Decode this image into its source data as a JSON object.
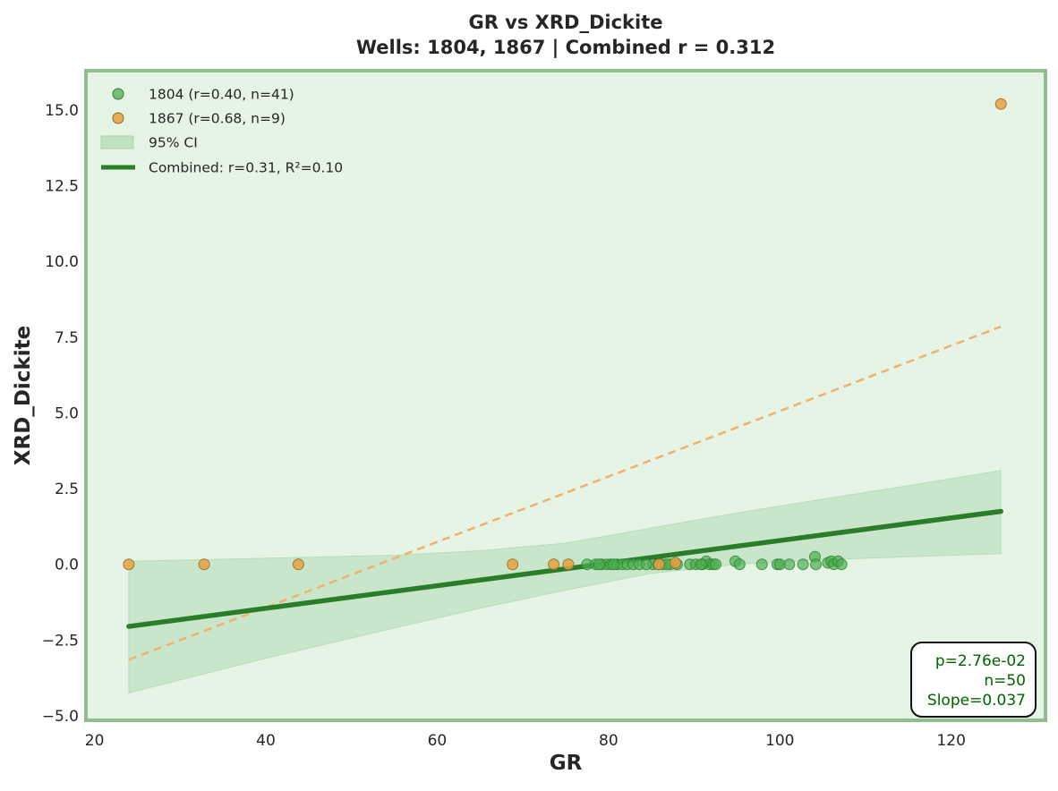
{
  "chart_data": {
    "type": "scatter",
    "title": "GR vs XRD_Dickite",
    "subtitle": "Wells: 1804, 1867 | Combined r = 0.312",
    "xlabel": "GR",
    "ylabel": "XRD_Dickite",
    "xlim": [
      19,
      131
    ],
    "ylim": [
      -5.15,
      16.3
    ],
    "xticks": [
      20,
      40,
      60,
      80,
      100,
      120
    ],
    "yticks": [
      -5.0,
      -2.5,
      0.0,
      2.5,
      5.0,
      7.5,
      10.0,
      12.5,
      15.0
    ],
    "xtick_labels": [
      "20",
      "40",
      "60",
      "80",
      "100",
      "120"
    ],
    "ytick_labels": [
      "−5.0",
      "−2.5",
      "0.0",
      "2.5",
      "5.0",
      "7.5",
      "10.0",
      "12.5",
      "15.0"
    ],
    "grid": false,
    "legend_position": "top-left",
    "colors": {
      "background": "#e6f4e6",
      "frame": "#8fbf8f",
      "well_1804": "#4caf50",
      "well_1867": "#e8a040",
      "fit_1867": "#f0b070",
      "combined_fit": "#2a7d2a",
      "ci_fill": "#a8d5a8",
      "stats_text": "#006400"
    },
    "series": [
      {
        "name": "1804 (r=0.40, n=41)",
        "kind": "scatter",
        "x": [
          77.5,
          78.5,
          79.2,
          79.8,
          80.3,
          81.0,
          81.6,
          82.2,
          82.9,
          83.6,
          85.2,
          85.8,
          86.3,
          87.2,
          88.0,
          89.5,
          90.2,
          91.0,
          91.4,
          91.8,
          92.2,
          94.8,
          95.3,
          97.9,
          99.7,
          100.0,
          101.1,
          102.7,
          104.1,
          104.2,
          105.6,
          106.0,
          106.3,
          106.8,
          107.2,
          92.5,
          90.8,
          86.8,
          84.4,
          80.6,
          78.9
        ],
        "y": [
          0.0,
          0.0,
          0.0,
          0.0,
          0.0,
          0.0,
          0.0,
          0.0,
          0.0,
          0.0,
          0.0,
          0.0,
          0.0,
          0.0,
          0.0,
          0.0,
          0.0,
          0.0,
          0.1,
          0.0,
          0.0,
          0.1,
          0.0,
          0.0,
          0.0,
          0.0,
          0.0,
          0.0,
          0.25,
          0.0,
          0.05,
          0.1,
          0.0,
          0.1,
          0.0,
          0.0,
          0.0,
          0.0,
          0.0,
          0.0,
          0.0
        ]
      },
      {
        "name": "1867 (r=0.68, n=9)",
        "kind": "scatter",
        "x": [
          24.0,
          32.8,
          43.8,
          68.8,
          73.6,
          75.3,
          85.9,
          87.8,
          125.8
        ],
        "y": [
          0.0,
          0.0,
          0.0,
          0.0,
          0.0,
          0.0,
          0.0,
          0.05,
          15.2
        ]
      }
    ],
    "fits": [
      {
        "name": "1867 fit",
        "style": "dashed",
        "x": [
          24.0,
          125.8
        ],
        "y": [
          -3.15,
          7.85
        ]
      },
      {
        "name": "Combined: r=0.31, R²=0.10",
        "style": "solid",
        "x": [
          24.0,
          125.8
        ],
        "y": [
          -2.05,
          1.75
        ]
      }
    ],
    "ci_band": {
      "name": "95% CI",
      "x": [
        24.0,
        40.0,
        55.0,
        65.0,
        75.0,
        85.0,
        95.0,
        105.0,
        115.0,
        125.8
      ],
      "upper": [
        0.1,
        0.2,
        0.3,
        0.45,
        0.7,
        1.2,
        1.7,
        2.15,
        2.6,
        3.1
      ],
      "lower": [
        -4.25,
        -3.1,
        -2.1,
        -1.45,
        -0.85,
        -0.3,
        0.0,
        0.15,
        0.25,
        0.35
      ]
    },
    "legend": [
      {
        "label": "1804 (r=0.40, n=41)",
        "marker": "circle",
        "color": "#4caf50"
      },
      {
        "label": "1867 (r=0.68, n=9)",
        "marker": "circle",
        "color": "#e8a040"
      },
      {
        "label": "95% CI",
        "marker": "patch",
        "color": "#a8d5a8"
      },
      {
        "label": "Combined: r=0.31, R²=0.10",
        "marker": "line",
        "color": "#2a7d2a"
      }
    ],
    "stats_box": [
      "p=2.76e-02",
      "n=50",
      "Slope=0.037"
    ]
  }
}
